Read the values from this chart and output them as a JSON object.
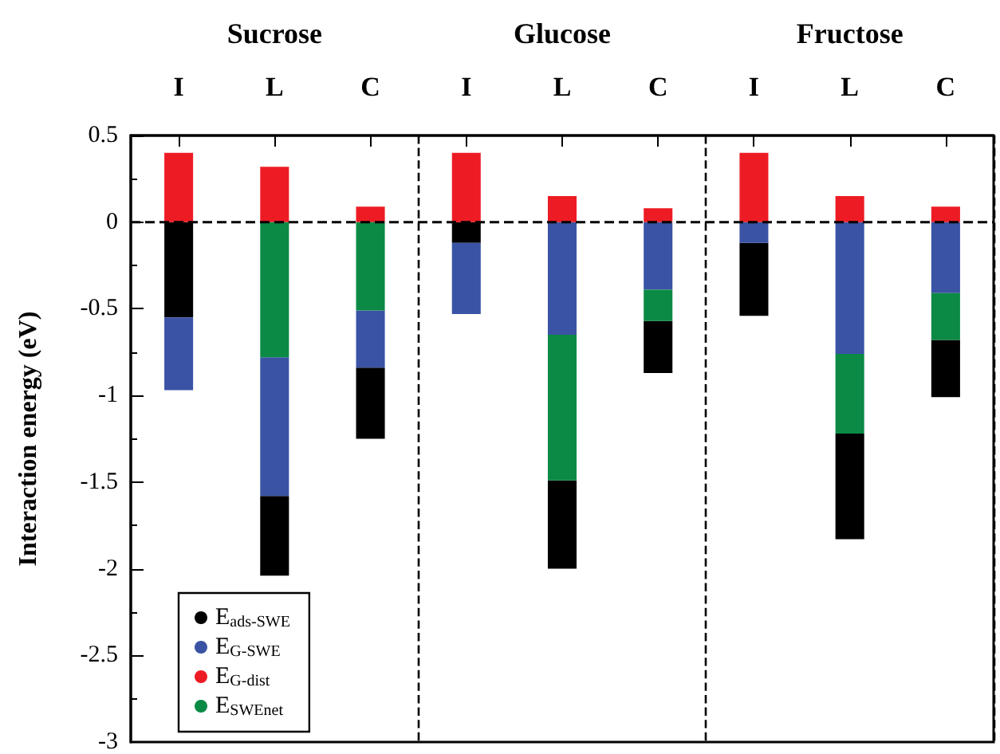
{
  "chart_data": {
    "type": "bar",
    "ylabel": "Interaction energy (eV)",
    "categories": [
      "I",
      "L",
      "C",
      "I",
      "L",
      "C",
      "I",
      "L",
      "C"
    ],
    "annotations": [
      "Sucrose",
      "Glucose",
      "Fructose"
    ],
    "series": [
      {
        "name": "E$_{ads-SWE}$",
        "color": "#000000",
        "base": [
          0,
          -1.58,
          -0.84,
          0,
          -1.49,
          -0.57,
          -0.12,
          -1.22,
          -0.68
        ],
        "values": [
          -0.55,
          -0.46,
          -0.41,
          -0.12,
          -0.51,
          -0.3,
          -0.42,
          -0.61,
          -0.33
        ]
      },
      {
        "name": "E$_{G-SWE}$",
        "color": "#3a53a4",
        "base": [
          -0.55,
          -0.78,
          -0.51,
          -0.12,
          0,
          0,
          0,
          0,
          0
        ],
        "values": [
          -0.42,
          -0.8,
          -0.33,
          -0.41,
          -0.65,
          -0.39,
          -0.12,
          -0.76,
          -0.41
        ]
      },
      {
        "name": "E$_{G-dist}$",
        "color": "#ed1c24",
        "base": [
          0,
          0,
          0,
          0,
          0,
          0,
          0,
          0,
          0
        ],
        "values": [
          0.4,
          0.32,
          0.09,
          0.4,
          0.15,
          0.08,
          0.4,
          0.15,
          0.09
        ]
      },
      {
        "name": "E$_{SWEnet}$",
        "color": "#0b8a45",
        "base": [
          null,
          0,
          0,
          null,
          -0.65,
          -0.39,
          null,
          -0.76,
          -0.41
        ],
        "values": [
          null,
          -0.78,
          -0.51,
          null,
          -0.84,
          -0.18,
          null,
          -0.46,
          -0.27
        ]
      }
    ],
    "ylim": [
      -3,
      0.5
    ],
    "yticks": [
      -3,
      -2.5,
      -2,
      -1.5,
      -1,
      -0.5,
      0,
      0.5
    ],
    "ref_lines": [
      {
        "axis": "y",
        "value": 0,
        "line_style": "dashed"
      }
    ],
    "legend": "bottom left",
    "marker": "circle",
    "grid": false
  }
}
